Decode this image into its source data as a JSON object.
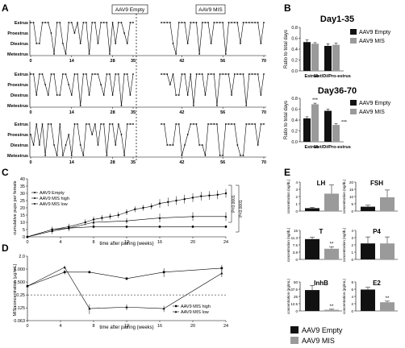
{
  "panels": {
    "A": "A",
    "B": "B",
    "C": "C",
    "D": "D",
    "E": "E"
  },
  "panel_a": {
    "states": [
      "Estrus",
      "Proestrus",
      "Diestrus",
      "Metestrus"
    ],
    "xticks": [
      "0",
      "14",
      "28",
      "35",
      "42",
      "56",
      "70"
    ],
    "marker_empty": "AAV9 Empty",
    "marker_mis": "AAV9 MIS",
    "cycles": [
      [
        0,
        0,
        2,
        2,
        0,
        0,
        0,
        1,
        3,
        0,
        0,
        2,
        3,
        0,
        0,
        1,
        0,
        2,
        0,
        0,
        3,
        0,
        0,
        2,
        0,
        0,
        0,
        3,
        0,
        2,
        0,
        0,
        1,
        2,
        0,
        0
      ],
      [
        0,
        0,
        0,
        0,
        2,
        3,
        0,
        0,
        0,
        2,
        0,
        0,
        0,
        3,
        0,
        0,
        0,
        2,
        0,
        0,
        0,
        0,
        3,
        0,
        0,
        0,
        0,
        2,
        0,
        0,
        0,
        0,
        0,
        0,
        2,
        0
      ],
      [
        0,
        0,
        2,
        0,
        0,
        1,
        2,
        0,
        0,
        2,
        2,
        0,
        0,
        1,
        2,
        0,
        0,
        3,
        0,
        0,
        2,
        0,
        0,
        0,
        1,
        2,
        0,
        0,
        2,
        0,
        0,
        3,
        0,
        0,
        2,
        0
      ],
      [
        0,
        0,
        0,
        1,
        0,
        2,
        2,
        0,
        0,
        2,
        0,
        3,
        0,
        0,
        0,
        2,
        0,
        0,
        0,
        3,
        0,
        0,
        0,
        0,
        2,
        0,
        0,
        0,
        0,
        3,
        0,
        0,
        0,
        0,
        2,
        0
      ],
      [
        1,
        2,
        0,
        2,
        0,
        3,
        0,
        0,
        2,
        3,
        0,
        3,
        2,
        1,
        3,
        0,
        0,
        2,
        3,
        0,
        0,
        1,
        0,
        2,
        0,
        0,
        3,
        0,
        0,
        2,
        0,
        1,
        3,
        0,
        0,
        0
      ],
      [
        0,
        0,
        2,
        2,
        2,
        0,
        0,
        3,
        2,
        1,
        0,
        0,
        0,
        2,
        2,
        3,
        0,
        0,
        0,
        0,
        3,
        3,
        0,
        0,
        0,
        0,
        2,
        3,
        3,
        0,
        0,
        0,
        0,
        2,
        0,
        0
      ]
    ]
  },
  "panel_b": {
    "title1": "Day1-35",
    "title2": "Day36-70",
    "ylabel": "Ratio to total days",
    "yticks": [
      "0.0",
      "0.2",
      "0.4",
      "0.6",
      "0.8"
    ],
    "categories": [
      "Estrus",
      "Met/Di/Pro-estrus"
    ],
    "legend": [
      "AAV9 Empty",
      "AAV9 MIS"
    ],
    "sig_marks": [
      "***",
      "***"
    ]
  },
  "panel_c": {
    "ylabel": "cumulative pups per female",
    "xlabel": "time after pairing (weeks)",
    "yticks": [
      "0",
      "5",
      "10",
      "15",
      "20",
      "25",
      "30",
      "35",
      "40"
    ],
    "xticks": [
      "0",
      "4",
      "8",
      "12",
      "16",
      "20",
      "24"
    ],
    "legend": [
      "AAV9 Empty",
      "AAV9 MIS high",
      "AAV9 MIS low"
    ],
    "pvals": [
      "P<0.0001",
      "P<0.0001"
    ]
  },
  "panel_d": {
    "ylabel": "MIS concentration (µg/mL)",
    "xlabel": "time after pairing (weeks)",
    "yticks": [
      "0.063",
      "0.125",
      "0.25",
      "0.500",
      "1.000",
      "2.0"
    ],
    "xticks": [
      "0",
      "4",
      "8",
      "12",
      "16",
      "20",
      "24"
    ],
    "legend": [
      "AAV9 MIS high",
      "AAV9 MIS low"
    ]
  },
  "panel_e": {
    "ylabel_ng": "concentration (ng/dL)",
    "ylabel_pg": "concentration (pg/mL)",
    "titles": [
      "LH",
      "FSH",
      "T",
      "P4",
      "InhB",
      "E2"
    ],
    "sig_marks": [
      "**",
      "**",
      "**"
    ],
    "legend": [
      "AAV9 Empty",
      "AAV9 MIS"
    ]
  },
  "colors": {
    "empty": "#111111",
    "mis": "#9a9a9a"
  },
  "chart_data": [
    {
      "panel": "B",
      "type": "bar",
      "title": "Day1-35",
      "categories": [
        "Estrus",
        "Met/Di/Pro-estrus"
      ],
      "ylim": [
        0,
        0.8
      ],
      "ylabel": "Ratio to total days",
      "series": [
        {
          "name": "AAV9 Empty",
          "values": [
            0.53,
            0.46
          ],
          "err": [
            0.04,
            0.04
          ]
        },
        {
          "name": "AAV9 MIS",
          "values": [
            0.5,
            0.48
          ],
          "err": [
            0.02,
            0.03
          ]
        }
      ]
    },
    {
      "panel": "B",
      "type": "bar",
      "title": "Day36-70",
      "categories": [
        "Estrus",
        "Met/Di/Pro-estrus"
      ],
      "ylim": [
        0,
        0.8
      ],
      "ylabel": "Ratio to total days",
      "series": [
        {
          "name": "AAV9 Empty",
          "values": [
            0.43,
            0.57
          ],
          "err": [
            0.03,
            0.03
          ]
        },
        {
          "name": "AAV9 MIS",
          "values": [
            0.69,
            0.31
          ],
          "err": [
            0.02,
            0.02
          ]
        }
      ]
    },
    {
      "panel": "C",
      "type": "line",
      "xlabel": "time after pairing (weeks)",
      "ylabel": "cumulative pups per female",
      "xlim": [
        0,
        24
      ],
      "ylim": [
        0,
        40
      ],
      "series": [
        {
          "name": "AAV9 Empty",
          "x": [
            0,
            3,
            5,
            7,
            8,
            9,
            10,
            11,
            12,
            13,
            14,
            15,
            16,
            17,
            18,
            19,
            20,
            21,
            22,
            23,
            24
          ],
          "values": [
            0,
            5,
            7,
            10,
            12,
            13,
            14,
            15,
            17,
            19,
            20,
            21,
            23,
            24,
            25,
            26,
            27,
            28,
            28.5,
            29,
            30
          ],
          "err": [
            0,
            2,
            2,
            2,
            2,
            2,
            2,
            2,
            2,
            2,
            2,
            2,
            3,
            3,
            3,
            3,
            3,
            3,
            3,
            3,
            3
          ]
        },
        {
          "name": "AAV9 MIS high",
          "x": [
            0,
            3,
            5,
            8,
            12,
            16,
            20,
            24
          ],
          "values": [
            0,
            5,
            6,
            7,
            7,
            7,
            7,
            7
          ],
          "err": [
            0,
            2,
            2,
            1,
            1,
            1,
            1,
            1
          ]
        },
        {
          "name": "AAV9 MIS low",
          "x": [
            0,
            3,
            5,
            8,
            12,
            16,
            20,
            24
          ],
          "values": [
            0,
            4,
            6,
            10,
            11,
            13,
            14,
            14
          ],
          "err": [
            0,
            2,
            2,
            2,
            2,
            3,
            3,
            3
          ]
        }
      ]
    },
    {
      "panel": "D",
      "type": "line",
      "yscale": "log2",
      "xlabel": "time after pairing (weeks)",
      "ylabel": "MIS concentration (µg/mL)",
      "xlim": [
        0,
        24
      ],
      "ylim": [
        0.063,
        2.0
      ],
      "series": [
        {
          "name": "AAV9 MIS high",
          "x": [
            0,
            4.5,
            7.5,
            12,
            16.5,
            23.5
          ],
          "values": [
            0.4,
            0.85,
            0.85,
            0.6,
            0.85,
            1.05
          ],
          "err": [
            0,
            0.1,
            0.05,
            0.05,
            0.2,
            0.2
          ]
        },
        {
          "name": "AAV9 MIS low",
          "x": [
            0,
            4.5,
            7.5,
            12,
            16.5,
            23.5
          ],
          "values": [
            0.4,
            1.1,
            0.12,
            0.13,
            0.12,
            0.8
          ],
          "err": [
            0,
            0.1,
            0.03,
            0.02,
            0.02,
            0.15
          ]
        }
      ]
    },
    {
      "panel": "E",
      "type": "bar",
      "title": "LH",
      "ylabel": "concentration (ng/dL)",
      "ylim": [
        0,
        4
      ],
      "categories": [
        "AAV9 Empty",
        "AAV9 MIS"
      ],
      "values": [
        0.4,
        2.4
      ],
      "err": [
        0.1,
        1.2
      ]
    },
    {
      "panel": "E",
      "type": "bar",
      "title": "FSH",
      "ylabel": "concentration (ng/dL)",
      "ylim": [
        0,
        20
      ],
      "categories": [
        "AAV9 Empty",
        "AAV9 MIS"
      ],
      "values": [
        3,
        9.5
      ],
      "err": [
        1,
        5
      ]
    },
    {
      "panel": "E",
      "type": "bar",
      "title": "T",
      "ylabel": "concentration (ng/dL)",
      "ylim": [
        0,
        15
      ],
      "categories": [
        "AAV9 Empty",
        "AAV9 MIS"
      ],
      "values": [
        10.5,
        5.5
      ],
      "err": [
        1,
        1
      ]
    },
    {
      "panel": "E",
      "type": "bar",
      "title": "P4",
      "ylabel": "concentration (ng/dL)",
      "ylim": [
        0,
        4
      ],
      "categories": [
        "AAV9 Empty",
        "AAV9 MIS"
      ],
      "values": [
        2.2,
        2.2
      ],
      "err": [
        0.9,
        0.9
      ]
    },
    {
      "panel": "E",
      "type": "bar",
      "title": "InhB",
      "ylabel": "concentration (pg/mL)",
      "ylim": [
        0,
        50
      ],
      "categories": [
        "AAV9 Empty",
        "AAV9 MIS"
      ],
      "values": [
        36,
        2
      ],
      "err": [
        8,
        1
      ]
    },
    {
      "panel": "E",
      "type": "bar",
      "title": "E2",
      "ylabel": "concentration (pg/mL)",
      "ylim": [
        0,
        8
      ],
      "categories": [
        "AAV9 Empty",
        "AAV9 MIS"
      ],
      "values": [
        5.9,
        2.4
      ],
      "err": [
        0.6,
        0.3
      ]
    }
  ]
}
